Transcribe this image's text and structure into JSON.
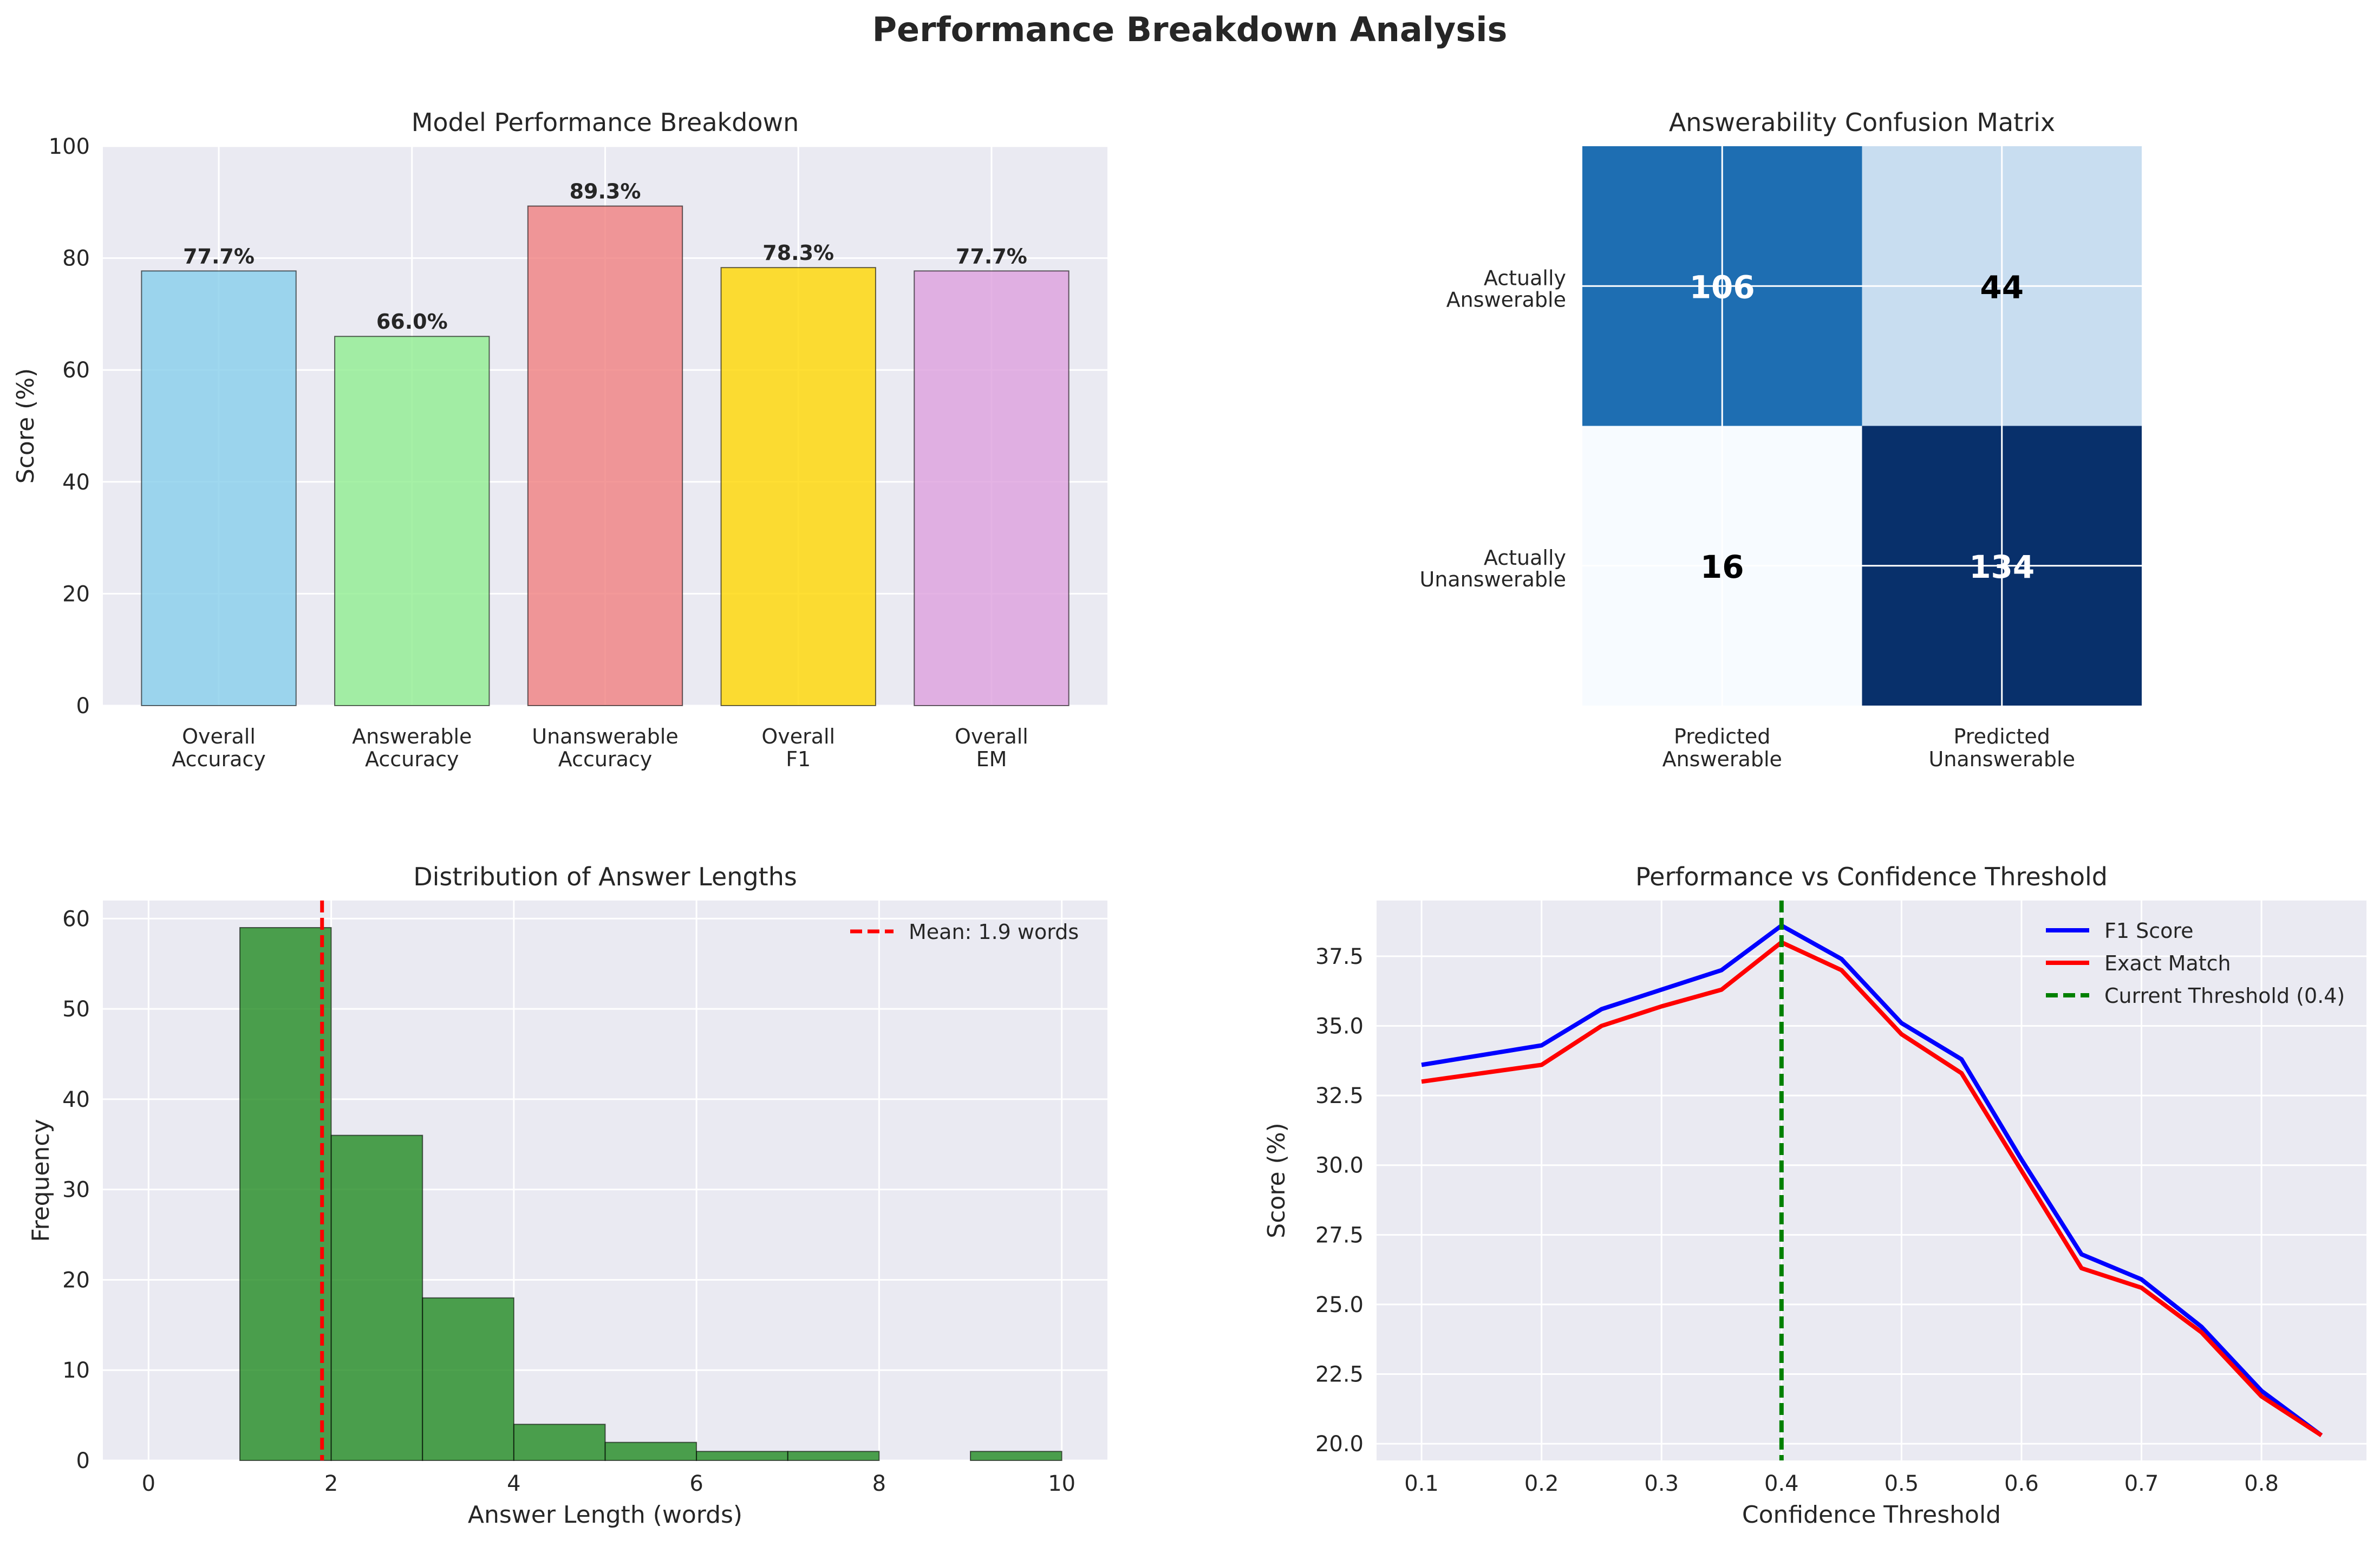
{
  "suptitle": "Performance Breakdown Analysis",
  "chart_data": [
    {
      "type": "bar",
      "title": "Model Performance Breakdown",
      "xlabel": "",
      "ylabel": "Score (%)",
      "ylim": [
        0,
        100
      ],
      "yticks": [
        0,
        20,
        40,
        60,
        80,
        100
      ],
      "grid": true,
      "categories": [
        [
          "Overall",
          "Accuracy"
        ],
        [
          "Answerable",
          "Accuracy"
        ],
        [
          "Unanswerable",
          "Accuracy"
        ],
        [
          "Overall",
          "F1"
        ],
        [
          "Overall",
          "EM"
        ]
      ],
      "values": [
        77.7,
        66.0,
        89.3,
        78.3,
        77.7
      ],
      "data_labels": [
        "77.7%",
        "66.0%",
        "89.3%",
        "78.3%",
        "77.7%"
      ],
      "colors": [
        "#87ceeb",
        "#90ee90",
        "#f08080",
        "#ffd700",
        "#dda0dd"
      ]
    },
    {
      "type": "heatmap",
      "title": "Answerability Confusion Matrix",
      "row_labels": [
        [
          "Actually",
          "Answerable"
        ],
        [
          "Actually",
          "Unanswerable"
        ]
      ],
      "col_labels": [
        [
          "Predicted",
          "Answerable"
        ],
        [
          "Predicted",
          "Unanswerable"
        ]
      ],
      "values": [
        [
          106,
          44
        ],
        [
          16,
          134
        ]
      ],
      "colormap": "Blues",
      "grid": true
    },
    {
      "type": "bar",
      "title": "Distribution of Answer Lengths",
      "xlabel": "Answer Length (words)",
      "ylabel": "Frequency",
      "xlim": [
        -0.5,
        10.5
      ],
      "ylim": [
        0,
        62
      ],
      "xticks": [
        0,
        2,
        4,
        6,
        8,
        10
      ],
      "yticks": [
        0,
        10,
        20,
        30,
        40,
        50,
        60
      ],
      "grid": true,
      "bins": [
        {
          "x0": 1,
          "x1": 2,
          "count": 59
        },
        {
          "x0": 2,
          "x1": 3,
          "count": 36
        },
        {
          "x0": 3,
          "x1": 4,
          "count": 18
        },
        {
          "x0": 4,
          "x1": 5,
          "count": 4
        },
        {
          "x0": 5,
          "x1": 6,
          "count": 2
        },
        {
          "x0": 6,
          "x1": 7,
          "count": 1
        },
        {
          "x0": 7,
          "x1": 8,
          "count": 1
        },
        {
          "x0": 8,
          "x1": 9,
          "count": 0
        },
        {
          "x0": 9,
          "x1": 10,
          "count": 1
        }
      ],
      "bar_color": "#228b22",
      "mean": 1.9,
      "legend": [
        "Mean: 1.9 words"
      ],
      "legend_position": "top-right"
    },
    {
      "type": "line",
      "title": "Performance vs Confidence Threshold",
      "xlabel": "Confidence Threshold",
      "ylabel": "Score (%)",
      "xlim": [
        0.0625,
        0.8875
      ],
      "ylim": [
        19.4,
        39.5
      ],
      "xticks": [
        0.1,
        0.2,
        0.3,
        0.4,
        0.5,
        0.6,
        0.7,
        0.8
      ],
      "xtick_labels": [
        "0.1",
        "0.2",
        "0.3",
        "0.4",
        "0.5",
        "0.6",
        "0.7",
        "0.8"
      ],
      "yticks": [
        20.0,
        22.5,
        25.0,
        27.5,
        30.0,
        32.5,
        35.0,
        37.5
      ],
      "ytick_labels": [
        "20.0",
        "22.5",
        "25.0",
        "27.5",
        "30.0",
        "32.5",
        "35.0",
        "37.5"
      ],
      "grid": true,
      "x": [
        0.1,
        0.2,
        0.25,
        0.3,
        0.35,
        0.4,
        0.45,
        0.5,
        0.55,
        0.6,
        0.65,
        0.7,
        0.75,
        0.8,
        0.85
      ],
      "series": [
        {
          "name": "F1 Score",
          "color": "#0000ff",
          "values": [
            33.6,
            34.3,
            35.6,
            36.3,
            37.0,
            38.6,
            37.4,
            35.1,
            33.8,
            30.2,
            26.8,
            25.9,
            24.2,
            21.9,
            20.3
          ]
        },
        {
          "name": "Exact Match",
          "color": "#ff0000",
          "values": [
            33.0,
            33.6,
            35.0,
            35.7,
            36.3,
            38.0,
            37.0,
            34.7,
            33.3,
            29.8,
            26.3,
            25.6,
            24.0,
            21.7,
            20.3
          ]
        }
      ],
      "threshold": {
        "name": "Current Threshold (0.4)",
        "x": 0.4,
        "color": "#008000"
      },
      "legend_position": "top-right"
    }
  ]
}
